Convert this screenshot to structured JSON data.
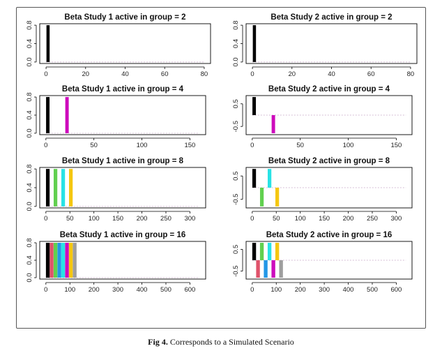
{
  "caption": {
    "label": "Fig 4.",
    "text": "Corresponds to a Simulated Scenario"
  },
  "palette": [
    "#000000",
    "#df536b",
    "#61d04f",
    "#2297e6",
    "#28e2e5",
    "#cd0bbc",
    "#f5c710",
    "#9e9e9e"
  ],
  "chart_data": [
    {
      "type": "bar",
      "title": "Beta Study 1 active in group = 2",
      "xlim": [
        0,
        80
      ],
      "xticks": [
        0,
        20,
        40,
        60,
        80
      ],
      "ylim": [
        0,
        0.8
      ],
      "yticks": [
        "0.0",
        "0.4",
        "0.8"
      ],
      "n_groups": 40,
      "group_size": 2,
      "active_groups": [
        {
          "group": 1,
          "value": 0.8
        }
      ]
    },
    {
      "type": "bar",
      "title": "Beta Study 2 active in group = 2",
      "xlim": [
        0,
        80
      ],
      "xticks": [
        0,
        20,
        40,
        60,
        80
      ],
      "ylim": [
        0,
        0.8
      ],
      "yticks": [
        "0.0",
        "0.4",
        "0.8"
      ],
      "n_groups": 40,
      "group_size": 2,
      "active_groups": [
        {
          "group": 1,
          "value": 0.8
        }
      ]
    },
    {
      "type": "bar",
      "title": "Beta Study 1 active in group = 4",
      "xlim": [
        0,
        160
      ],
      "xticks": [
        0,
        50,
        100,
        150
      ],
      "ylim": [
        0,
        0.8
      ],
      "yticks": [
        "0.0",
        "0.4",
        "0.8"
      ],
      "n_groups": 40,
      "group_size": 4,
      "active_groups": [
        {
          "group": 1,
          "value": 0.8
        },
        {
          "group": 6,
          "value": 0.8
        }
      ]
    },
    {
      "type": "bar",
      "title": "Beta Study 2 active in group = 4",
      "xlim": [
        0,
        160
      ],
      "xticks": [
        0,
        50,
        100,
        150
      ],
      "ylim": [
        -0.8,
        0.8
      ],
      "yticks": [
        "-0.5",
        "0.5"
      ],
      "n_groups": 40,
      "group_size": 4,
      "active_groups": [
        {
          "group": 1,
          "value": 0.8
        },
        {
          "group": 6,
          "value": -0.8
        }
      ]
    },
    {
      "type": "bar",
      "title": "Beta Study 1 active in group = 8",
      "xlim": [
        0,
        320
      ],
      "xticks": [
        0,
        50,
        100,
        150,
        200,
        250,
        300
      ],
      "ylim": [
        0,
        0.8
      ],
      "yticks": [
        "0.0",
        "0.4",
        "0.8"
      ],
      "n_groups": 40,
      "group_size": 8,
      "active_groups": [
        {
          "group": 1,
          "value": 0.8
        },
        {
          "group": 3,
          "value": 0.8
        },
        {
          "group": 5,
          "value": 0.8
        },
        {
          "group": 7,
          "value": 0.8
        }
      ]
    },
    {
      "type": "bar",
      "title": "Beta Study 2 active in group = 8",
      "xlim": [
        0,
        320
      ],
      "xticks": [
        0,
        50,
        100,
        150,
        200,
        250,
        300
      ],
      "ylim": [
        -0.8,
        0.8
      ],
      "yticks": [
        "-0.5",
        "0.5"
      ],
      "n_groups": 40,
      "group_size": 8,
      "active_groups": [
        {
          "group": 1,
          "value": 0.8
        },
        {
          "group": 3,
          "value": -0.8
        },
        {
          "group": 5,
          "value": 0.8
        },
        {
          "group": 7,
          "value": -0.8
        }
      ]
    },
    {
      "type": "bar",
      "title": "Beta Study 1 active in group = 16",
      "xlim": [
        0,
        640
      ],
      "xticks": [
        0,
        100,
        200,
        300,
        400,
        500,
        600
      ],
      "ylim": [
        0,
        0.8
      ],
      "yticks": [
        "0.0",
        "0.4",
        "0.8"
      ],
      "n_groups": 40,
      "group_size": 16,
      "active_groups": [
        {
          "group": 1,
          "value": 0.8
        },
        {
          "group": 2,
          "value": 0.8
        },
        {
          "group": 3,
          "value": 0.8
        },
        {
          "group": 4,
          "value": 0.8
        },
        {
          "group": 5,
          "value": 0.8
        },
        {
          "group": 6,
          "value": 0.8
        },
        {
          "group": 7,
          "value": 0.8
        },
        {
          "group": 8,
          "value": 0.8
        }
      ]
    },
    {
      "type": "bar",
      "title": "Beta Study 2 active in group = 16",
      "xlim": [
        0,
        640
      ],
      "xticks": [
        0,
        100,
        200,
        300,
        400,
        500,
        600
      ],
      "ylim": [
        -0.8,
        0.8
      ],
      "yticks": [
        "-0.5",
        "0.5"
      ],
      "n_groups": 40,
      "group_size": 16,
      "active_groups": [
        {
          "group": 1,
          "value": 0.8
        },
        {
          "group": 2,
          "value": -0.8
        },
        {
          "group": 3,
          "value": 0.8
        },
        {
          "group": 4,
          "value": -0.8
        },
        {
          "group": 5,
          "value": 0.8
        },
        {
          "group": 6,
          "value": -0.8
        },
        {
          "group": 7,
          "value": 0.8
        },
        {
          "group": 8,
          "value": -0.8
        }
      ]
    }
  ]
}
